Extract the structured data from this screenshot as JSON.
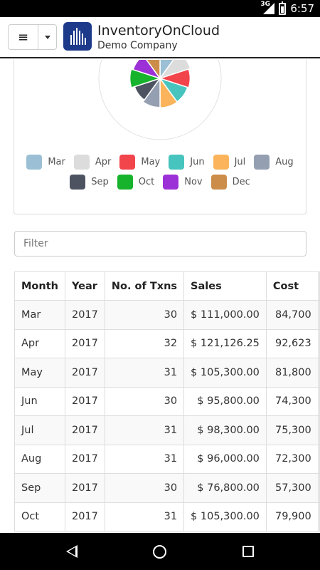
{
  "status_bar": {
    "network": "3G",
    "time": "6:57"
  },
  "header": {
    "title": "InventoryOnCloud",
    "subtitle": "Demo Company",
    "menu_icon": "≡"
  },
  "chart_data": {
    "type": "pie",
    "categories": [
      "Mar",
      "Apr",
      "May",
      "Jun",
      "Jul",
      "Aug",
      "Sep",
      "Oct",
      "Nov",
      "Dec"
    ],
    "values": [
      111000.0,
      121126.25,
      105300.0,
      95800.0,
      98300.0,
      96000.0,
      76800.0,
      105300.0,
      90000.0,
      80000.0
    ],
    "colors": [
      "#9bbfd4",
      "#dcdcdc",
      "#f2444b",
      "#48c4be",
      "#fbb45c",
      "#949fb1",
      "#4d5361",
      "#17b32c",
      "#9b31d6",
      "#cc8d4a"
    ],
    "legend": "bottom"
  },
  "legend_rows": [
    [
      {
        "label": "Mar",
        "color": "#9bbfd4"
      },
      {
        "label": "Apr",
        "color": "#dcdcdc"
      },
      {
        "label": "May",
        "color": "#f2444b"
      },
      {
        "label": "Jun",
        "color": "#48c4be"
      },
      {
        "label": "Jul",
        "color": "#fbb45c"
      },
      {
        "label": "Aug",
        "color": "#949fb1"
      }
    ],
    [
      {
        "label": "Sep",
        "color": "#4d5361"
      },
      {
        "label": "Oct",
        "color": "#17b32c"
      },
      {
        "label": "Nov",
        "color": "#9b31d6"
      },
      {
        "label": "Dec",
        "color": "#cc8d4a"
      }
    ]
  ],
  "filter": {
    "placeholder": "Filter",
    "value": ""
  },
  "table": {
    "headers": [
      "Month",
      "Year",
      "No. of Txns",
      "Sales",
      "Cost"
    ],
    "rows": [
      {
        "month": "Mar",
        "year": "2017",
        "txns": "30",
        "sales": "$ 111,000.00",
        "cost": "84,700"
      },
      {
        "month": "Apr",
        "year": "2017",
        "txns": "32",
        "sales": "$ 121,126.25",
        "cost": "92,623"
      },
      {
        "month": "May",
        "year": "2017",
        "txns": "31",
        "sales": "$ 105,300.00",
        "cost": "81,800"
      },
      {
        "month": "Jun",
        "year": "2017",
        "txns": "30",
        "sales": "$ 95,800.00",
        "cost": "74,300"
      },
      {
        "month": "Jul",
        "year": "2017",
        "txns": "31",
        "sales": "$ 98,300.00",
        "cost": "75,300"
      },
      {
        "month": "Aug",
        "year": "2017",
        "txns": "31",
        "sales": "$ 96,000.00",
        "cost": "72,300"
      },
      {
        "month": "Sep",
        "year": "2017",
        "txns": "30",
        "sales": "$ 76,800.00",
        "cost": "57,300"
      },
      {
        "month": "Oct",
        "year": "2017",
        "txns": "31",
        "sales": "$ 105,300.00",
        "cost": "79,900"
      }
    ]
  }
}
